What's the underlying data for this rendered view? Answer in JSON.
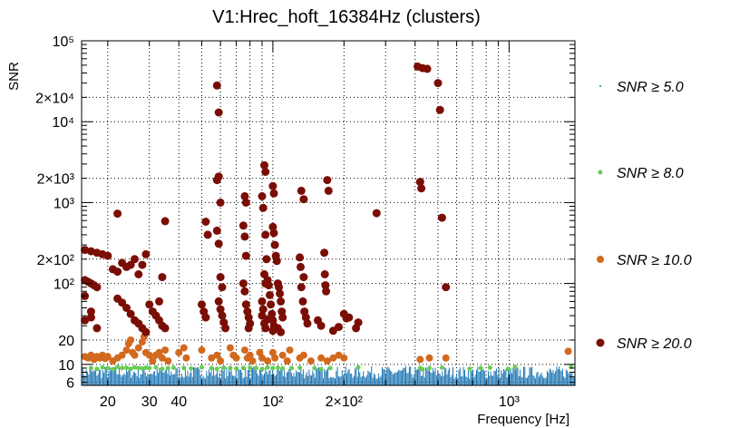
{
  "chart_data": {
    "type": "scatter",
    "title": "V1:Hrec_hoft_16384Hz (clusters)",
    "xlabel": "Frequency [Hz]",
    "ylabel": "SNR",
    "x_scale": "log",
    "y_scale": "log",
    "xlim": [
      15.5,
      1900
    ],
    "ylim": [
      5.5,
      100000
    ],
    "grid": true,
    "legend_position": "right",
    "x_ticks": [
      {
        "value": 20,
        "label": "20"
      },
      {
        "value": 30,
        "label": "30"
      },
      {
        "value": 40,
        "label": "40"
      },
      {
        "value": 100,
        "label": "10²"
      },
      {
        "value": 200,
        "label": "2×10²"
      },
      {
        "value": 1000,
        "label": "10³"
      }
    ],
    "y_ticks": [
      {
        "value": 6,
        "label": "6"
      },
      {
        "value": 10,
        "label": "10"
      },
      {
        "value": 20,
        "label": "20"
      },
      {
        "value": 100,
        "label": "10²"
      },
      {
        "value": 200,
        "label": "2×10²"
      },
      {
        "value": 1000,
        "label": "10³"
      },
      {
        "value": 2000,
        "label": "2×10³"
      },
      {
        "value": 10000,
        "label": "10⁴"
      },
      {
        "value": 20000,
        "label": "2×10⁴"
      },
      {
        "value": 100000,
        "label": "10⁵"
      }
    ],
    "series": [
      {
        "name": "SNR ≥ 5.0",
        "legend_label": "≥ 5.0",
        "color": "#1f77b4",
        "marker": "dot",
        "density_band": {
          "x_range": [
            15.5,
            1900
          ],
          "y_range": [
            5.5,
            9.5
          ]
        },
        "points": []
      },
      {
        "name": "SNR ≥ 8.0",
        "legend_label": "≥ 8.0",
        "color": "#66cc55",
        "marker": "small-circle",
        "points": [
          [
            17,
            9
          ],
          [
            18,
            8.8
          ],
          [
            19,
            9.2
          ],
          [
            20,
            9
          ],
          [
            21,
            8.7
          ],
          [
            22,
            9.3
          ],
          [
            23,
            9
          ],
          [
            24,
            9.1
          ],
          [
            25,
            8.8
          ],
          [
            26,
            9.2
          ],
          [
            27,
            9
          ],
          [
            28,
            8.9
          ],
          [
            29,
            9.1
          ],
          [
            30,
            9
          ],
          [
            32,
            9.2
          ],
          [
            34,
            8.8
          ],
          [
            36,
            9
          ],
          [
            38,
            9.1
          ],
          [
            42,
            9
          ],
          [
            45,
            8.9
          ],
          [
            50,
            9.2
          ],
          [
            55,
            9
          ],
          [
            58,
            8.8
          ],
          [
            62,
            9.1
          ],
          [
            66,
            9
          ],
          [
            70,
            8.9
          ],
          [
            75,
            9
          ],
          [
            80,
            9.1
          ],
          [
            85,
            9
          ],
          [
            90,
            8.8
          ],
          [
            95,
            9.2
          ],
          [
            100,
            9
          ],
          [
            105,
            9.1
          ],
          [
            110,
            8.9
          ],
          [
            120,
            9
          ],
          [
            130,
            9.1
          ],
          [
            150,
            9
          ],
          [
            160,
            8.7
          ],
          [
            175,
            9
          ],
          [
            230,
            9.2
          ],
          [
            420,
            9
          ],
          [
            430,
            8.7
          ],
          [
            460,
            9
          ],
          [
            520,
            9.1
          ],
          [
            680,
            8.8
          ],
          [
            760,
            9
          ],
          [
            830,
            9.1
          ],
          [
            990,
            8.8
          ],
          [
            1060,
            9.3
          ],
          [
            1830,
            9.3
          ]
        ]
      },
      {
        "name": "SNR ≥ 10.0",
        "legend_label": "≥ 10.0",
        "color": "#d2691e",
        "marker": "circle",
        "points": [
          [
            16,
            12.5
          ],
          [
            16.5,
            12
          ],
          [
            17,
            13
          ],
          [
            17.5,
            11.5
          ],
          [
            18,
            12.5
          ],
          [
            18.5,
            12
          ],
          [
            19,
            13
          ],
          [
            19.5,
            11.8
          ],
          [
            20,
            12.5
          ],
          [
            21,
            11
          ],
          [
            22,
            12
          ],
          [
            23,
            13
          ],
          [
            24,
            15
          ],
          [
            24.5,
            18
          ],
          [
            25,
            20
          ],
          [
            25.5,
            14
          ],
          [
            26,
            13
          ],
          [
            27,
            16
          ],
          [
            28,
            19
          ],
          [
            28.5,
            22
          ],
          [
            29,
            14
          ],
          [
            30,
            13
          ],
          [
            31,
            11
          ],
          [
            32,
            13
          ],
          [
            33,
            14
          ],
          [
            34,
            12
          ],
          [
            35,
            15
          ],
          [
            36,
            11
          ],
          [
            40,
            14
          ],
          [
            42,
            16
          ],
          [
            43,
            12
          ],
          [
            50,
            15
          ],
          [
            55,
            12
          ],
          [
            58,
            13
          ],
          [
            60,
            11
          ],
          [
            66,
            16
          ],
          [
            68,
            13
          ],
          [
            70,
            12
          ],
          [
            76,
            15
          ],
          [
            78,
            12
          ],
          [
            80,
            13
          ],
          [
            82,
            11
          ],
          [
            88,
            14
          ],
          [
            90,
            12
          ],
          [
            95,
            11
          ],
          [
            100,
            14
          ],
          [
            102,
            12
          ],
          [
            110,
            13
          ],
          [
            115,
            11
          ],
          [
            118,
            15
          ],
          [
            130,
            12
          ],
          [
            135,
            13
          ],
          [
            145,
            11
          ],
          [
            160,
            12
          ],
          [
            170,
            11
          ],
          [
            180,
            12
          ],
          [
            190,
            13
          ],
          [
            200,
            12
          ],
          [
            420,
            11.5
          ],
          [
            460,
            12
          ],
          [
            540,
            12
          ],
          [
            1780,
            14.5
          ]
        ]
      },
      {
        "name": "SNR ≥ 20.0",
        "legend_label": "≥ 20.0",
        "color": "#7a0e05",
        "marker": "large-circle",
        "points": [
          [
            16,
            110
          ],
          [
            16.5,
            105
          ],
          [
            17,
            100
          ],
          [
            17.5,
            95
          ],
          [
            18,
            90
          ],
          [
            16,
            260
          ],
          [
            17,
            250
          ],
          [
            18,
            240
          ],
          [
            19,
            230
          ],
          [
            20,
            220
          ],
          [
            16,
            70
          ],
          [
            17,
            45
          ],
          [
            16,
            35
          ],
          [
            17,
            38
          ],
          [
            18,
            28
          ],
          [
            22,
            730
          ],
          [
            21,
            150
          ],
          [
            22,
            140
          ],
          [
            23,
            180
          ],
          [
            24,
            160
          ],
          [
            25,
            170
          ],
          [
            26,
            200
          ],
          [
            27,
            130
          ],
          [
            28,
            170
          ],
          [
            29,
            230
          ],
          [
            22,
            65
          ],
          [
            23,
            58
          ],
          [
            24,
            50
          ],
          [
            25,
            42
          ],
          [
            26,
            35
          ],
          [
            27,
            32
          ],
          [
            28,
            28
          ],
          [
            29,
            25
          ],
          [
            30,
            55
          ],
          [
            31,
            45
          ],
          [
            32,
            40
          ],
          [
            33,
            35
          ],
          [
            34,
            30
          ],
          [
            35,
            28
          ],
          [
            33,
            60
          ],
          [
            34,
            120
          ],
          [
            35,
            590
          ],
          [
            58,
            28000
          ],
          [
            59,
            13000
          ],
          [
            59,
            2100
          ],
          [
            58,
            1900
          ],
          [
            60,
            1000
          ],
          [
            58,
            450
          ],
          [
            59,
            310
          ],
          [
            60,
            120
          ],
          [
            61,
            90
          ],
          [
            59,
            60
          ],
          [
            60,
            48
          ],
          [
            61,
            40
          ],
          [
            62,
            33
          ],
          [
            63,
            28
          ],
          [
            52,
            580
          ],
          [
            53,
            400
          ],
          [
            50,
            55
          ],
          [
            51,
            45
          ],
          [
            52,
            38
          ],
          [
            76,
            1200
          ],
          [
            77,
            1000
          ],
          [
            75,
            520
          ],
          [
            76,
            380
          ],
          [
            77,
            220
          ],
          [
            75,
            100
          ],
          [
            76,
            80
          ],
          [
            77,
            55
          ],
          [
            78,
            45
          ],
          [
            79,
            38
          ],
          [
            80,
            32
          ],
          [
            79,
            28
          ],
          [
            92,
            2900
          ],
          [
            93,
            2400
          ],
          [
            90,
            1200
          ],
          [
            91,
            860
          ],
          [
            93,
            400
          ],
          [
            94,
            200
          ],
          [
            95,
            110
          ],
          [
            96,
            95
          ],
          [
            97,
            72
          ],
          [
            98,
            55
          ],
          [
            99,
            42
          ],
          [
            100,
            35
          ],
          [
            101,
            30
          ],
          [
            100,
            26
          ],
          [
            92,
            130
          ],
          [
            93,
            100
          ],
          [
            90,
            60
          ],
          [
            91,
            48
          ],
          [
            90,
            40
          ],
          [
            92,
            32
          ],
          [
            93,
            28
          ],
          [
            95,
            36
          ],
          [
            100,
            1600
          ],
          [
            101,
            1300
          ],
          [
            100,
            500
          ],
          [
            101,
            420
          ],
          [
            102,
            300
          ],
          [
            103,
            220
          ],
          [
            104,
            190
          ],
          [
            105,
            100
          ],
          [
            106,
            90
          ],
          [
            107,
            75
          ],
          [
            108,
            60
          ],
          [
            109,
            45
          ],
          [
            110,
            38
          ],
          [
            105,
            28
          ],
          [
            108,
            25
          ],
          [
            132,
            1400
          ],
          [
            135,
            1100
          ],
          [
            130,
            210
          ],
          [
            131,
            160
          ],
          [
            135,
            120
          ],
          [
            132,
            90
          ],
          [
            134,
            60
          ],
          [
            136,
            45
          ],
          [
            138,
            38
          ],
          [
            140,
            32
          ],
          [
            170,
            1900
          ],
          [
            172,
            1400
          ],
          [
            165,
            240
          ],
          [
            166,
            130
          ],
          [
            167,
            95
          ],
          [
            168,
            80
          ],
          [
            155,
            35
          ],
          [
            160,
            30
          ],
          [
            180,
            26
          ],
          [
            190,
            29
          ],
          [
            200,
            42
          ],
          [
            205,
            37
          ],
          [
            210,
            38
          ],
          [
            230,
            33
          ],
          [
            225,
            28
          ],
          [
            275,
            740
          ],
          [
            420,
            1800
          ],
          [
            425,
            1500
          ],
          [
            410,
            48000
          ],
          [
            430,
            46000
          ],
          [
            450,
            45000
          ],
          [
            500,
            30000
          ],
          [
            510,
            14000
          ],
          [
            520,
            650
          ],
          [
            540,
            90
          ]
        ]
      }
    ]
  }
}
